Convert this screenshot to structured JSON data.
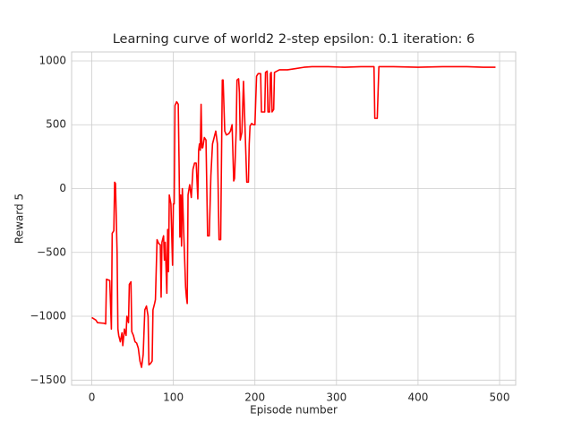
{
  "chart_data": {
    "type": "line",
    "title": "Learning curve of world2 2-step epsilon: 0.1 iteration: 6",
    "xlabel": "Episode number",
    "ylabel": "Reward 5",
    "color": "#ff0000",
    "grid": true,
    "xlim": [
      -24.75,
      519.75
    ],
    "ylim": [
      -1540,
      1070
    ],
    "xticks": [
      0,
      100,
      200,
      300,
      400,
      500
    ],
    "yticks": [
      {
        "value": -1500,
        "label": "−1500"
      },
      {
        "value": -1000,
        "label": "−1000"
      },
      {
        "value": -500,
        "label": "−500"
      },
      0,
      500,
      1000
    ],
    "x": [
      0,
      5,
      7,
      15,
      17,
      18,
      22,
      24,
      25,
      27,
      28,
      29,
      31,
      32,
      33,
      35,
      37,
      38,
      40,
      42,
      43,
      45,
      46,
      48,
      49,
      51,
      53,
      55,
      57,
      59,
      61,
      63,
      65,
      67,
      69,
      70,
      72,
      74,
      75,
      77,
      78,
      80,
      82,
      84,
      85,
      86,
      88,
      89,
      90,
      92,
      93,
      94,
      95,
      97,
      99,
      100,
      101,
      102,
      104,
      106,
      107,
      108,
      109,
      110,
      111,
      113,
      115,
      116,
      117,
      118,
      120,
      122,
      124,
      126,
      128,
      130,
      131,
      132,
      133,
      134,
      135,
      136,
      138,
      140,
      142,
      144,
      146,
      148,
      150,
      152,
      154,
      156,
      158,
      160,
      161,
      163,
      165,
      168,
      170,
      172,
      174,
      175,
      177,
      178,
      180,
      181,
      182,
      184,
      186,
      188,
      190,
      192,
      193,
      194,
      196,
      198,
      200,
      202,
      204,
      207,
      208,
      210,
      212,
      213,
      215,
      216,
      218,
      219,
      220,
      221,
      223,
      224,
      230,
      240,
      250,
      260,
      270,
      290,
      310,
      330,
      346,
      347,
      350,
      352,
      370,
      400,
      430,
      460,
      480,
      495
    ],
    "values": [
      -1010,
      -1030,
      -1050,
      -1055,
      -1060,
      -710,
      -720,
      -1100,
      -350,
      -330,
      50,
      40,
      -500,
      -1100,
      -1150,
      -1200,
      -1130,
      -1230,
      -1100,
      -1150,
      -1000,
      -1050,
      -750,
      -730,
      -1120,
      -1150,
      -1200,
      -1210,
      -1250,
      -1350,
      -1400,
      -1300,
      -950,
      -920,
      -1000,
      -1380,
      -1370,
      -1350,
      -950,
      -900,
      -870,
      -400,
      -430,
      -440,
      -850,
      -420,
      -370,
      -560,
      -420,
      -820,
      -320,
      -650,
      -50,
      -120,
      -600,
      -120,
      -120,
      650,
      680,
      660,
      200,
      -380,
      -50,
      -450,
      0,
      -400,
      -770,
      -850,
      -900,
      -50,
      30,
      -70,
      150,
      200,
      200,
      -80,
      300,
      350,
      300,
      660,
      320,
      320,
      400,
      380,
      -370,
      -370,
      100,
      350,
      400,
      450,
      350,
      -400,
      -400,
      850,
      850,
      450,
      420,
      430,
      450,
      500,
      60,
      80,
      450,
      850,
      860,
      750,
      380,
      440,
      840,
      450,
      50,
      50,
      350,
      490,
      510,
      500,
      500,
      880,
      900,
      900,
      600,
      600,
      600,
      910,
      920,
      600,
      600,
      900,
      910,
      600,
      620,
      910,
      930,
      930,
      940,
      950,
      955,
      955,
      950,
      955,
      955,
      550,
      550,
      955,
      955,
      950,
      955,
      955,
      950,
      950
    ]
  }
}
